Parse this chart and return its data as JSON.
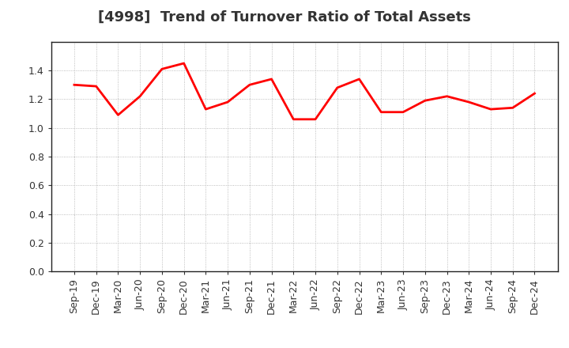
{
  "title": "[4998]  Trend of Turnover Ratio of Total Assets",
  "x_labels": [
    "Sep-19",
    "Dec-19",
    "Mar-20",
    "Jun-20",
    "Sep-20",
    "Dec-20",
    "Mar-21",
    "Jun-21",
    "Sep-21",
    "Dec-21",
    "Mar-22",
    "Jun-22",
    "Sep-22",
    "Dec-22",
    "Mar-23",
    "Jun-23",
    "Sep-23",
    "Dec-23",
    "Mar-24",
    "Jun-24",
    "Sep-24",
    "Dec-24"
  ],
  "y_values": [
    1.3,
    1.29,
    1.09,
    1.22,
    1.41,
    1.45,
    1.13,
    1.18,
    1.3,
    1.34,
    1.06,
    1.06,
    1.28,
    1.34,
    1.11,
    1.11,
    1.19,
    1.22,
    1.18,
    1.13,
    1.14,
    1.24
  ],
  "ylim": [
    0.0,
    1.6
  ],
  "yticks": [
    0.0,
    0.2,
    0.4,
    0.6,
    0.8,
    1.0,
    1.2,
    1.4
  ],
  "line_color": "#ff0000",
  "line_width": 2.0,
  "title_fontsize": 13,
  "tick_fontsize": 9,
  "background_color": "#ffffff",
  "grid_color": "#aaaaaa",
  "plot_bg_color": "#ffffff",
  "spine_color": "#222222"
}
